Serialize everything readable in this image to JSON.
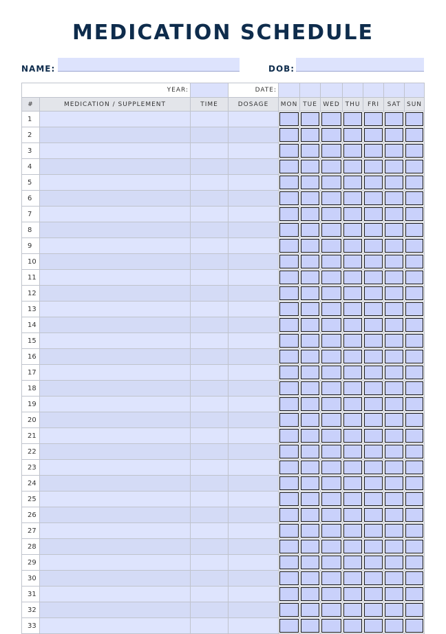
{
  "title": "MEDICATION SCHEDULE",
  "form": {
    "name_label": "NAME:",
    "dob_label": "DOB:",
    "name_value": "",
    "dob_value": ""
  },
  "table": {
    "year_label": "YEAR:",
    "date_label": "DATE:",
    "headers": {
      "num": "#",
      "medication": "MEDICATION / SUPPLEMENT",
      "time": "TIME",
      "dosage": "DOSAGE"
    },
    "days": [
      "MON",
      "TUE",
      "WED",
      "THU",
      "FRI",
      "SAT",
      "SUN"
    ],
    "row_count": 33
  },
  "colors": {
    "title": "#0e2c4c",
    "field": "#dde3fd",
    "checkbox": "#c9d1fb"
  }
}
